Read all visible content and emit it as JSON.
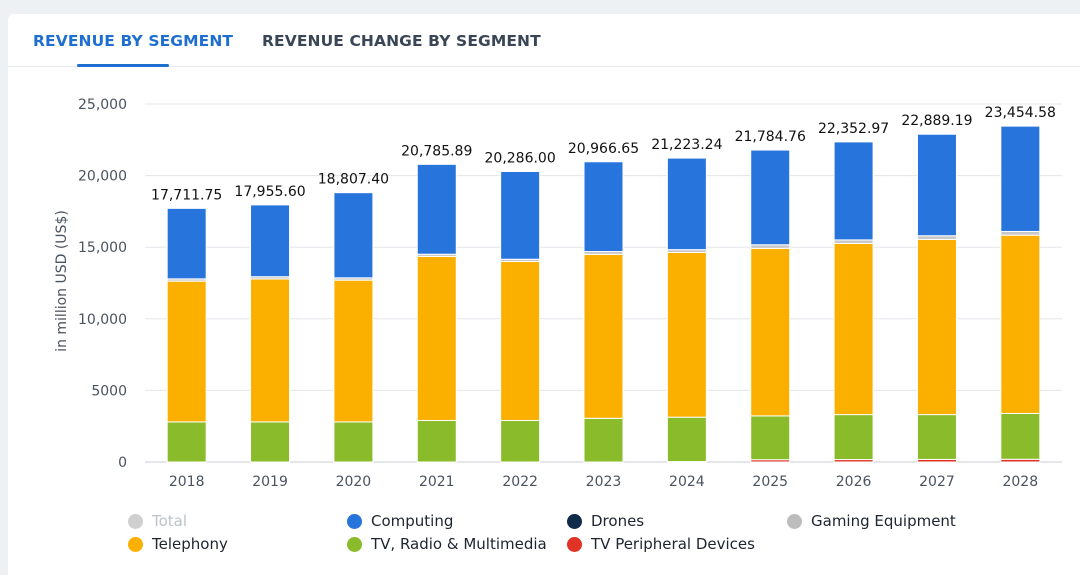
{
  "tabs": {
    "revenue_by_segment": "REVENUE BY SEGMENT",
    "revenue_change_by_segment": "REVENUE CHANGE BY SEGMENT"
  },
  "chart_data": {
    "type": "bar",
    "stacked": true,
    "ylabel": "in million USD (US$)",
    "ylim": [
      0,
      25000
    ],
    "yticks": [
      0,
      5000,
      10000,
      15000,
      20000,
      25000
    ],
    "ytick_labels": [
      "0",
      "5000",
      "10,000",
      "15,000",
      "20,000",
      "25,000"
    ],
    "categories": [
      "2018",
      "2019",
      "2020",
      "2021",
      "2022",
      "2023",
      "2024",
      "2025",
      "2026",
      "2027",
      "2028"
    ],
    "totals": [
      17711.75,
      17955.6,
      18807.4,
      20785.89,
      20286.0,
      20966.65,
      21223.24,
      21784.76,
      22352.97,
      22889.19,
      23454.58
    ],
    "total_labels": [
      "17,711.75",
      "17,955.60",
      "18,807.40",
      "20,785.89",
      "20,286.00",
      "20,966.65",
      "21,223.24",
      "21,784.76",
      "22,352.97",
      "22,889.19",
      "23,454.58"
    ],
    "series": [
      {
        "name": "TV Peripheral Devices",
        "color": "#e03225",
        "values": [
          0,
          0,
          0,
          0,
          0,
          0,
          30,
          160,
          170,
          180,
          190
        ]
      },
      {
        "name": "TV, Radio & Multimedia",
        "color": "#8abb2a",
        "values": [
          2800,
          2800,
          2800,
          2900,
          2900,
          3050,
          3100,
          3060,
          3140,
          3130,
          3200
        ]
      },
      {
        "name": "Telephony",
        "color": "#fbb000",
        "values": [
          9830,
          9980,
          9900,
          11450,
          11100,
          11450,
          11500,
          11700,
          11950,
          12230,
          12450
        ]
      },
      {
        "name": "Gaming Equipment",
        "color": "#c8c8c8",
        "values": [
          160,
          160,
          160,
          160,
          160,
          200,
          200,
          250,
          250,
          260,
          260
        ]
      },
      {
        "name": "Drones",
        "color": "#0f2a4a",
        "values": [
          0,
          0,
          0,
          0,
          0,
          0,
          0,
          0,
          0,
          0,
          0
        ]
      },
      {
        "name": "Computing",
        "color": "#2774dc",
        "values": [
          4921.75,
          5015.6,
          5947.4,
          6275.89,
          6126.0,
          6266.65,
          6393.24,
          6614.76,
          6842.97,
          7089.19,
          7354.58
        ]
      }
    ]
  },
  "legend": {
    "items": [
      {
        "name": "Total",
        "color": "#cfcfcf",
        "muted": true
      },
      {
        "name": "Computing",
        "color": "#2774dc"
      },
      {
        "name": "Drones",
        "color": "#0f2a4a"
      },
      {
        "name": "Gaming Equipment",
        "color": "#bdbdbd"
      },
      {
        "name": "Telephony",
        "color": "#fbb000"
      },
      {
        "name": "TV, Radio & Multimedia",
        "color": "#8abb2a"
      },
      {
        "name": "TV Peripheral Devices",
        "color": "#e03225"
      }
    ]
  }
}
